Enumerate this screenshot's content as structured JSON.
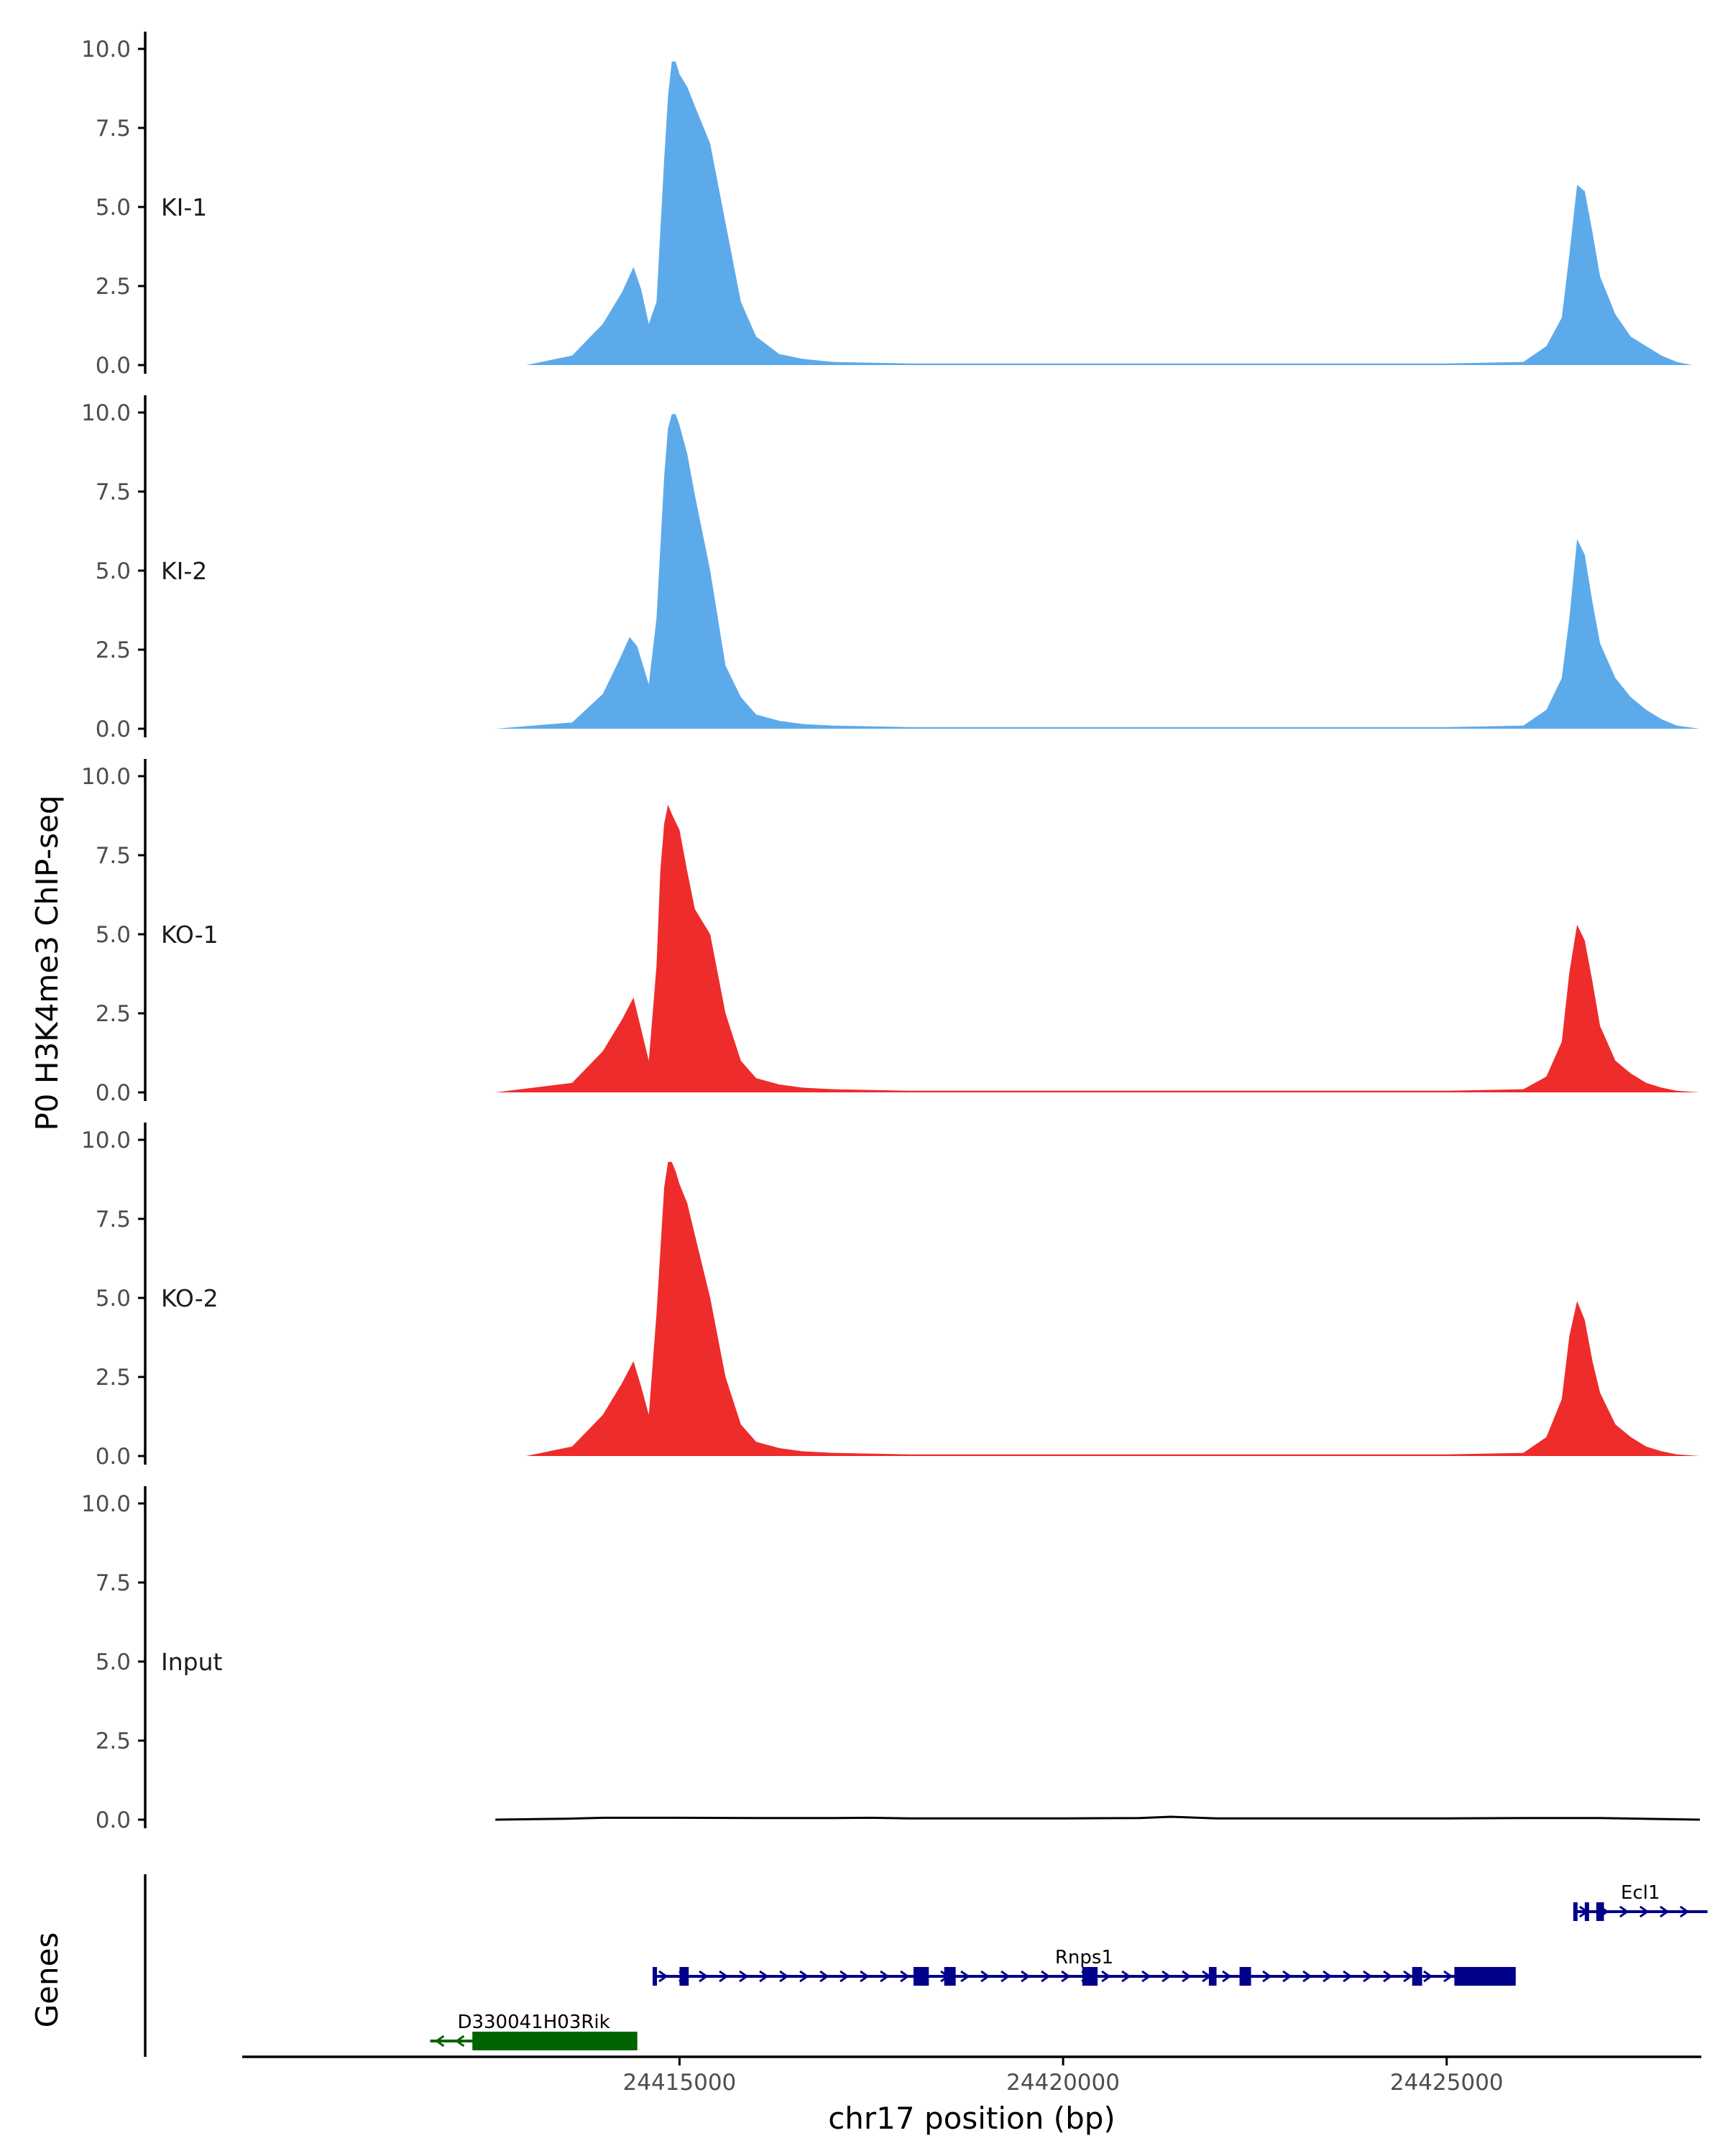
{
  "chart_data": {
    "type": "area",
    "ylabel": "P0 H3K4me3 ChIP-seq",
    "xlabel": "chr17 position (bp)",
    "xlim": [
      24409300,
      24428300
    ],
    "ylim": [
      0,
      10.4
    ],
    "y_ticks": [
      0.0,
      2.5,
      5.0,
      7.5,
      10.0
    ],
    "y_tick_labels": [
      "0.0",
      "2.5",
      "5.0",
      "7.5",
      "10.0"
    ],
    "x_ticks": [
      24415000,
      24420000,
      24425000
    ],
    "x_tick_labels": [
      "24415000",
      "24420000",
      "24425000"
    ],
    "genes_label": "Genes",
    "colors": {
      "KI": "#5daaeb",
      "KO": "#ee2c2c",
      "Input": "#000000",
      "gene_plus": "#00008b",
      "gene_minus": "#006400"
    },
    "tracks": [
      {
        "label": "KI-1",
        "color": "#5daaeb",
        "x": [
          24413000,
          24413600,
          24414000,
          24414250,
          24414400,
          24414500,
          24414600,
          24414700,
          24414800,
          24414850,
          24414900,
          24414950,
          24415000,
          24415100,
          24415200,
          24415400,
          24415600,
          24415800,
          24416000,
          24416300,
          24416600,
          24417000,
          24418000,
          24419000,
          24420000,
          24421000,
          24422000,
          24423000,
          24424000,
          24425000,
          24426000,
          24426300,
          24426500,
          24426600,
          24426700,
          24426800,
          24426900,
          24427000,
          24427200,
          24427400,
          24427600,
          24427800,
          24428000,
          24428200
        ],
        "y": [
          0.0,
          0.3,
          1.3,
          2.3,
          3.1,
          2.4,
          1.3,
          2.0,
          6.5,
          8.5,
          9.6,
          9.6,
          9.2,
          8.8,
          8.2,
          7.0,
          4.5,
          2.0,
          0.9,
          0.35,
          0.2,
          0.1,
          0.05,
          0.05,
          0.05,
          0.05,
          0.05,
          0.05,
          0.05,
          0.05,
          0.1,
          0.6,
          1.5,
          3.5,
          5.7,
          5.5,
          4.2,
          2.8,
          1.6,
          0.9,
          0.6,
          0.3,
          0.1,
          0.0
        ]
      },
      {
        "label": "KI-2",
        "color": "#5daaeb",
        "x": [
          24412600,
          24413600,
          24414000,
          24414200,
          24414350,
          24414450,
          24414600,
          24414700,
          24414800,
          24414850,
          24414900,
          24414950,
          24415000,
          24415100,
          24415200,
          24415400,
          24415600,
          24415800,
          24416000,
          24416300,
          24416600,
          24417000,
          24418000,
          24419000,
          24420000,
          24421000,
          24422000,
          24423000,
          24424000,
          24425000,
          24426000,
          24426300,
          24426500,
          24426600,
          24426700,
          24426800,
          24426900,
          24427000,
          24427200,
          24427400,
          24427600,
          24427800,
          24428000,
          24428300
        ],
        "y": [
          0.0,
          0.2,
          1.1,
          2.1,
          2.9,
          2.6,
          1.4,
          3.5,
          8.0,
          9.5,
          9.95,
          9.95,
          9.6,
          8.7,
          7.4,
          5.0,
          2.0,
          1.0,
          0.45,
          0.25,
          0.15,
          0.1,
          0.05,
          0.05,
          0.05,
          0.05,
          0.05,
          0.05,
          0.05,
          0.05,
          0.1,
          0.6,
          1.6,
          3.5,
          6.0,
          5.5,
          4.0,
          2.7,
          1.6,
          1.0,
          0.6,
          0.3,
          0.1,
          0.0
        ]
      },
      {
        "label": "KO-1",
        "color": "#ee2c2c",
        "x": [
          24412600,
          24413600,
          24414000,
          24414250,
          24414400,
          24414500,
          24414600,
          24414700,
          24414750,
          24414800,
          24414850,
          24414900,
          24415000,
          24415100,
          24415200,
          24415400,
          24415600,
          24415800,
          24416000,
          24416300,
          24416600,
          24417000,
          24418000,
          24419000,
          24420000,
          24421000,
          24422000,
          24423000,
          24424000,
          24425000,
          24426000,
          24426300,
          24426500,
          24426600,
          24426700,
          24426800,
          24426900,
          24427000,
          24427200,
          24427400,
          24427600,
          24427800,
          24428000,
          24428300
        ],
        "y": [
          0.0,
          0.3,
          1.3,
          2.3,
          3.0,
          2.0,
          1.0,
          4.0,
          7.0,
          8.5,
          9.1,
          8.8,
          8.3,
          7.0,
          5.8,
          5.0,
          2.5,
          1.0,
          0.45,
          0.25,
          0.15,
          0.1,
          0.05,
          0.05,
          0.05,
          0.05,
          0.05,
          0.05,
          0.05,
          0.05,
          0.1,
          0.5,
          1.6,
          3.8,
          5.3,
          4.8,
          3.5,
          2.1,
          1.0,
          0.6,
          0.3,
          0.15,
          0.05,
          0.0
        ]
      },
      {
        "label": "KO-2",
        "color": "#ee2c2c",
        "x": [
          24413000,
          24413600,
          24414000,
          24414250,
          24414400,
          24414500,
          24414600,
          24414700,
          24414800,
          24414850,
          24414900,
          24414950,
          24415000,
          24415100,
          24415200,
          24415400,
          24415600,
          24415800,
          24416000,
          24416300,
          24416600,
          24417000,
          24418000,
          24419000,
          24420000,
          24421000,
          24422000,
          24423000,
          24424000,
          24425000,
          24426000,
          24426300,
          24426500,
          24426600,
          24426700,
          24426800,
          24426900,
          24427000,
          24427200,
          24427400,
          24427600,
          24427800,
          24428000,
          24428300
        ],
        "y": [
          0.0,
          0.3,
          1.3,
          2.3,
          3.0,
          2.2,
          1.3,
          4.5,
          8.5,
          9.3,
          9.3,
          9.0,
          8.6,
          8.0,
          7.0,
          5.0,
          2.5,
          1.0,
          0.45,
          0.25,
          0.15,
          0.1,
          0.05,
          0.05,
          0.05,
          0.05,
          0.05,
          0.05,
          0.05,
          0.05,
          0.1,
          0.6,
          1.8,
          3.8,
          4.9,
          4.3,
          3.0,
          2.0,
          1.0,
          0.6,
          0.3,
          0.15,
          0.05,
          0.0
        ]
      },
      {
        "label": "Input",
        "color": "#000000",
        "x": [
          24412600,
          24413500,
          24414000,
          24415000,
          24416000,
          24417000,
          24417500,
          24418000,
          24419000,
          24420000,
          24421000,
          24421400,
          24422000,
          24423000,
          24424000,
          24425000,
          24426000,
          24427000,
          24428300
        ],
        "y": [
          0.0,
          0.03,
          0.06,
          0.06,
          0.05,
          0.05,
          0.06,
          0.04,
          0.04,
          0.04,
          0.05,
          0.09,
          0.04,
          0.04,
          0.04,
          0.04,
          0.05,
          0.05,
          0.0
        ]
      }
    ],
    "genes": [
      {
        "name": "Rnps1",
        "strand": "+",
        "start": 24414650,
        "end": 24425900,
        "row": 1,
        "color": "#00008b",
        "exons": [
          [
            24414650,
            24414700
          ],
          [
            24415000,
            24415120
          ],
          [
            24418050,
            24418250
          ],
          [
            24418450,
            24418600
          ],
          [
            24420250,
            24420450
          ],
          [
            24421900,
            24422000
          ],
          [
            24422300,
            24422450
          ],
          [
            24424550,
            24424680
          ],
          [
            24425100,
            24425900
          ]
        ]
      },
      {
        "name": "Ecl1",
        "strand": "+",
        "start": 24426650,
        "end": 24428400,
        "row": 0,
        "color": "#00008b",
        "exons": [
          [
            24426650,
            24426700
          ],
          [
            24426800,
            24426850
          ],
          [
            24426950,
            24427050
          ]
        ]
      },
      {
        "name": "D330041H03Rik",
        "strand": "-",
        "start": 24411750,
        "end": 24414450,
        "row": 2,
        "color": "#006400",
        "exons": [
          [
            24412300,
            24414450
          ]
        ]
      }
    ]
  }
}
